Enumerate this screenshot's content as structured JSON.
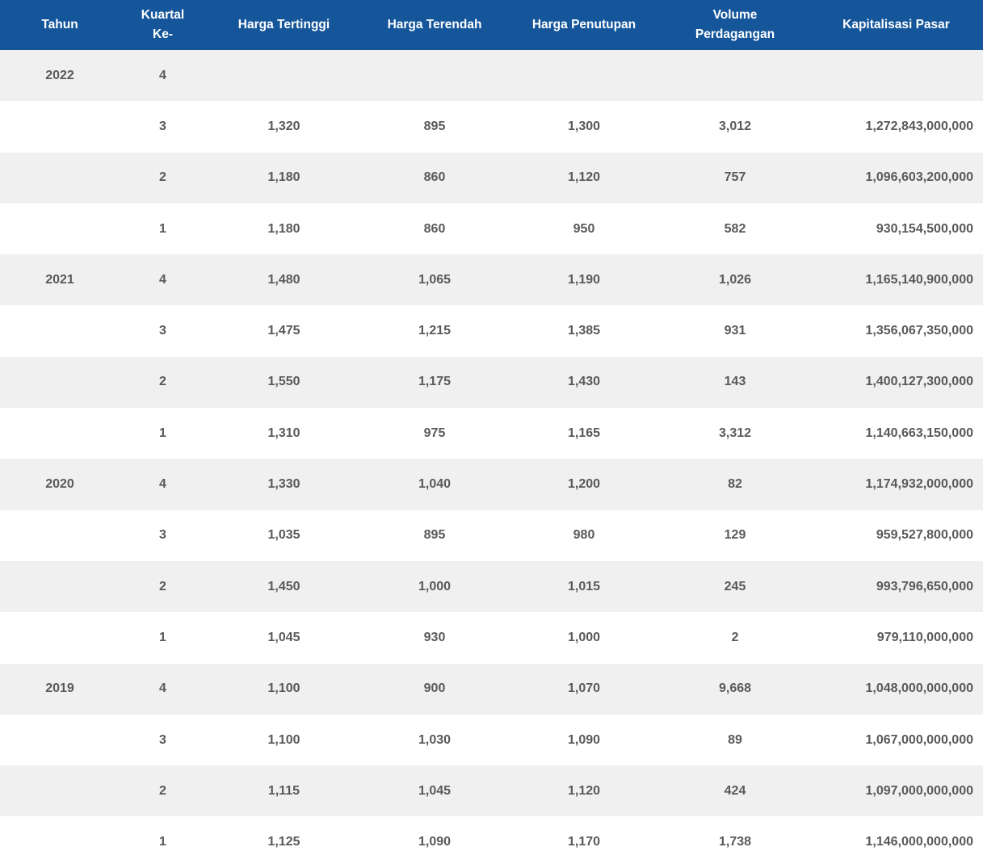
{
  "theme": {
    "header_bg": "#15569B",
    "header_text": "#FFFFFF",
    "row_stripe_bg": "#F0F0F0",
    "row_bg": "#FFFFFF",
    "cell_text": "#58595B"
  },
  "table": {
    "columns": [
      {
        "id": "tahun",
        "label": "Tahun"
      },
      {
        "id": "kuartal-ke",
        "label": "Kuartal\nKe-"
      },
      {
        "id": "harga-tertinggi",
        "label": "Harga Tertinggi"
      },
      {
        "id": "harga-terendah",
        "label": "Harga Terendah"
      },
      {
        "id": "harga-penutupan",
        "label": "Harga Penutupan"
      },
      {
        "id": "volume-perdagangan",
        "label": "Volume\nPerdagangan"
      },
      {
        "id": "kapitalisasi-pasar",
        "label": "Kapitalisasi Pasar"
      }
    ],
    "rows": [
      [
        "2022",
        "4",
        "",
        "",
        "",
        "",
        ""
      ],
      [
        "",
        "3",
        "1,320",
        "895",
        "1,300",
        "3,012",
        "1,272,843,000,000"
      ],
      [
        "",
        "2",
        "1,180",
        "860",
        "1,120",
        "757",
        "1,096,603,200,000"
      ],
      [
        "",
        "1",
        "1,180",
        "860",
        "950",
        "582",
        "930,154,500,000"
      ],
      [
        "2021",
        "4",
        "1,480",
        "1,065",
        "1,190",
        "1,026",
        "1,165,140,900,000"
      ],
      [
        "",
        "3",
        "1,475",
        "1,215",
        "1,385",
        "931",
        "1,356,067,350,000"
      ],
      [
        "",
        "2",
        "1,550",
        "1,175",
        "1,430",
        "143",
        "1,400,127,300,000"
      ],
      [
        "",
        "1",
        "1,310",
        "975",
        "1,165",
        "3,312",
        "1,140,663,150,000"
      ],
      [
        "2020",
        "4",
        "1,330",
        "1,040",
        "1,200",
        "82",
        "1,174,932,000,000"
      ],
      [
        "",
        "3",
        "1,035",
        "895",
        "980",
        "129",
        "959,527,800,000"
      ],
      [
        "",
        "2",
        "1,450",
        "1,000",
        "1,015",
        "245",
        "993,796,650,000"
      ],
      [
        "",
        "1",
        "1,045",
        "930",
        "1,000",
        "2",
        "979,110,000,000"
      ],
      [
        "2019",
        "4",
        "1,100",
        "900",
        "1,070",
        "9,668",
        "1,048,000,000,000"
      ],
      [
        "",
        "3",
        "1,100",
        "1,030",
        "1,090",
        "89",
        "1,067,000,000,000"
      ],
      [
        "",
        "2",
        "1,115",
        "1,045",
        "1,120",
        "424",
        "1,097,000,000,000"
      ],
      [
        "",
        "1",
        "1,125",
        "1,090",
        "1,170",
        "1,738",
        "1,146,000,000,000"
      ]
    ]
  },
  "chart_data": {
    "type": "table",
    "title": "",
    "columns": [
      "Tahun",
      "Kuartal Ke-",
      "Harga Tertinggi",
      "Harga Terendah",
      "Harga Penutupan",
      "Volume Perdagangan",
      "Kapitalisasi Pasar"
    ],
    "rows": [
      [
        2022,
        4,
        null,
        null,
        null,
        null,
        null
      ],
      [
        2022,
        3,
        1320,
        895,
        1300,
        3012,
        1272843000000
      ],
      [
        2022,
        2,
        1180,
        860,
        1120,
        757,
        1096603200000
      ],
      [
        2022,
        1,
        1180,
        860,
        950,
        582,
        930154500000
      ],
      [
        2021,
        4,
        1480,
        1065,
        1190,
        1026,
        1165140900000
      ],
      [
        2021,
        3,
        1475,
        1215,
        1385,
        931,
        1356067350000
      ],
      [
        2021,
        2,
        1550,
        1175,
        1430,
        143,
        1400127300000
      ],
      [
        2021,
        1,
        1310,
        975,
        1165,
        3312,
        1140663150000
      ],
      [
        2020,
        4,
        1330,
        1040,
        1200,
        82,
        1174932000000
      ],
      [
        2020,
        3,
        1035,
        895,
        980,
        129,
        959527800000
      ],
      [
        2020,
        2,
        1450,
        1000,
        1015,
        245,
        993796650000
      ],
      [
        2020,
        1,
        1045,
        930,
        1000,
        2,
        979110000000
      ],
      [
        2019,
        4,
        1100,
        900,
        1070,
        9668,
        1048000000000
      ],
      [
        2019,
        3,
        1100,
        1030,
        1090,
        89,
        1067000000000
      ],
      [
        2019,
        2,
        1115,
        1045,
        1120,
        424,
        1097000000000
      ],
      [
        2019,
        1,
        1125,
        1090,
        1170,
        1738,
        1146000000000
      ]
    ],
    "layout": {
      "striped_rows": true,
      "stripe_pattern": "odd-rows-gray",
      "header_style": "blue-bar",
      "column_alignment": [
        "center",
        "center",
        "center",
        "center",
        "center",
        "center",
        "right"
      ]
    }
  }
}
